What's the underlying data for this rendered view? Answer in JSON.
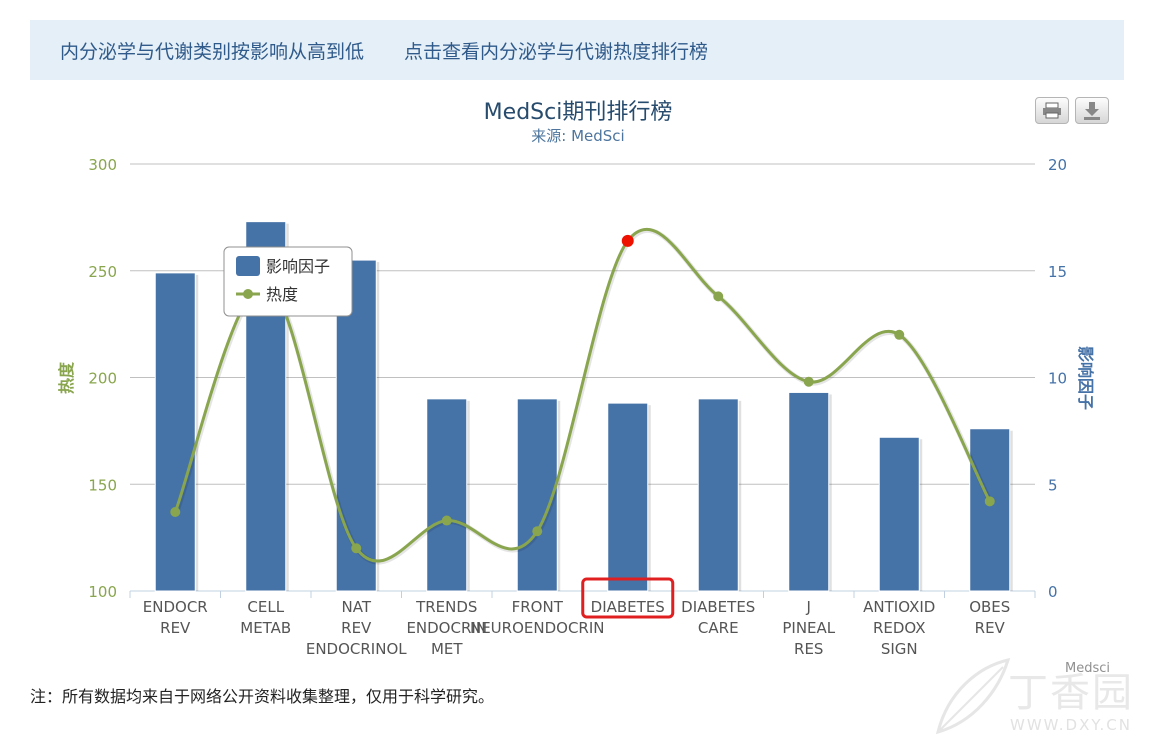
{
  "header": {
    "link_sort": "内分泌学与代谢类别按影响从高到低",
    "link_heat": "点击查看内分泌学与代谢热度排行榜"
  },
  "toolbar": {
    "print_icon": "print-icon",
    "download_icon": "download-icon"
  },
  "chart_data": {
    "type": "bar",
    "title": "MedSci期刊排行榜",
    "subtitle": "来源: MedSci",
    "credit": "Medsci",
    "categories": [
      [
        "ENDOCR",
        "REV"
      ],
      [
        "CELL",
        "METAB"
      ],
      [
        "NAT",
        "REV",
        "ENDOCRINOL"
      ],
      [
        "TRENDS",
        "ENDOCRIN",
        "MET"
      ],
      [
        "FRONT",
        "NEUROENDOCRIN"
      ],
      [
        "DIABETES"
      ],
      [
        "DIABETES",
        "CARE"
      ],
      [
        "J",
        "PINEAL",
        "RES"
      ],
      [
        "ANTIOXID",
        "REDOX",
        "SIGN"
      ],
      [
        "OBES",
        "REV"
      ]
    ],
    "highlighted_category_index": 5,
    "series": [
      {
        "name": "影响因子",
        "type": "bar",
        "axis": "right",
        "color": "#4572a7",
        "values": [
          14.9,
          17.3,
          15.5,
          9.0,
          9.0,
          8.8,
          9.0,
          9.3,
          7.2,
          7.6
        ]
      },
      {
        "name": "热度",
        "type": "line",
        "axis": "left",
        "color": "#89a54e",
        "values": [
          137,
          244,
          120,
          133,
          128,
          264,
          238,
          198,
          220,
          142
        ],
        "highlight_point_color": "#ee1100"
      }
    ],
    "yaxis_left": {
      "label": "热度",
      "min": 100,
      "max": 300,
      "ticks": [
        "100",
        "150",
        "200",
        "250",
        "300"
      ]
    },
    "yaxis_right": {
      "label": "影响因子",
      "min": 0,
      "max": 20,
      "ticks": [
        "0",
        "5",
        "10",
        "15",
        "20"
      ]
    },
    "grid": true,
    "legend_position": "top-left"
  },
  "footer": {
    "note": "注：所有数据均来自于网络公开资料收集整理，仅用于科学研究。"
  },
  "watermark": {
    "text": "丁香园",
    "url": "WWW.DXY.CN"
  }
}
